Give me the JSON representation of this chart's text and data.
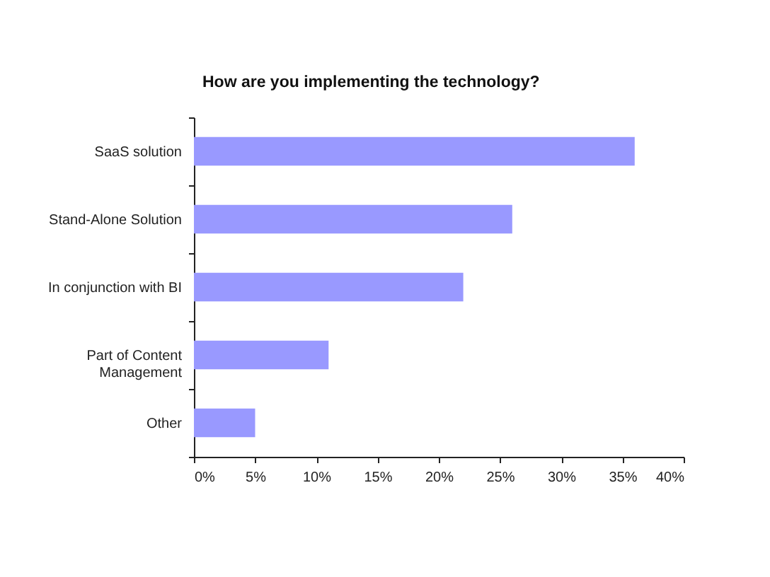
{
  "chart_data": {
    "type": "bar",
    "orientation": "horizontal",
    "title": "How are you implementing the technology?",
    "categories": [
      "SaaS solution",
      "Stand-Alone Solution",
      "In conjunction with BI",
      "Part of Content Management",
      "Other"
    ],
    "values": [
      36,
      26,
      22,
      11,
      5
    ],
    "color": "#9999ff",
    "xlim": [
      0,
      40
    ],
    "xticks": [
      {
        "value": 0,
        "label": "0%"
      },
      {
        "value": 5,
        "label": "5%"
      },
      {
        "value": 10,
        "label": "10%"
      },
      {
        "value": 15,
        "label": "15%"
      },
      {
        "value": 20,
        "label": "20%"
      },
      {
        "value": 25,
        "label": "25%"
      },
      {
        "value": 30,
        "label": "30%"
      },
      {
        "value": 35,
        "label": "35%"
      },
      {
        "value": 40,
        "label": "40%"
      }
    ],
    "grid": false
  }
}
